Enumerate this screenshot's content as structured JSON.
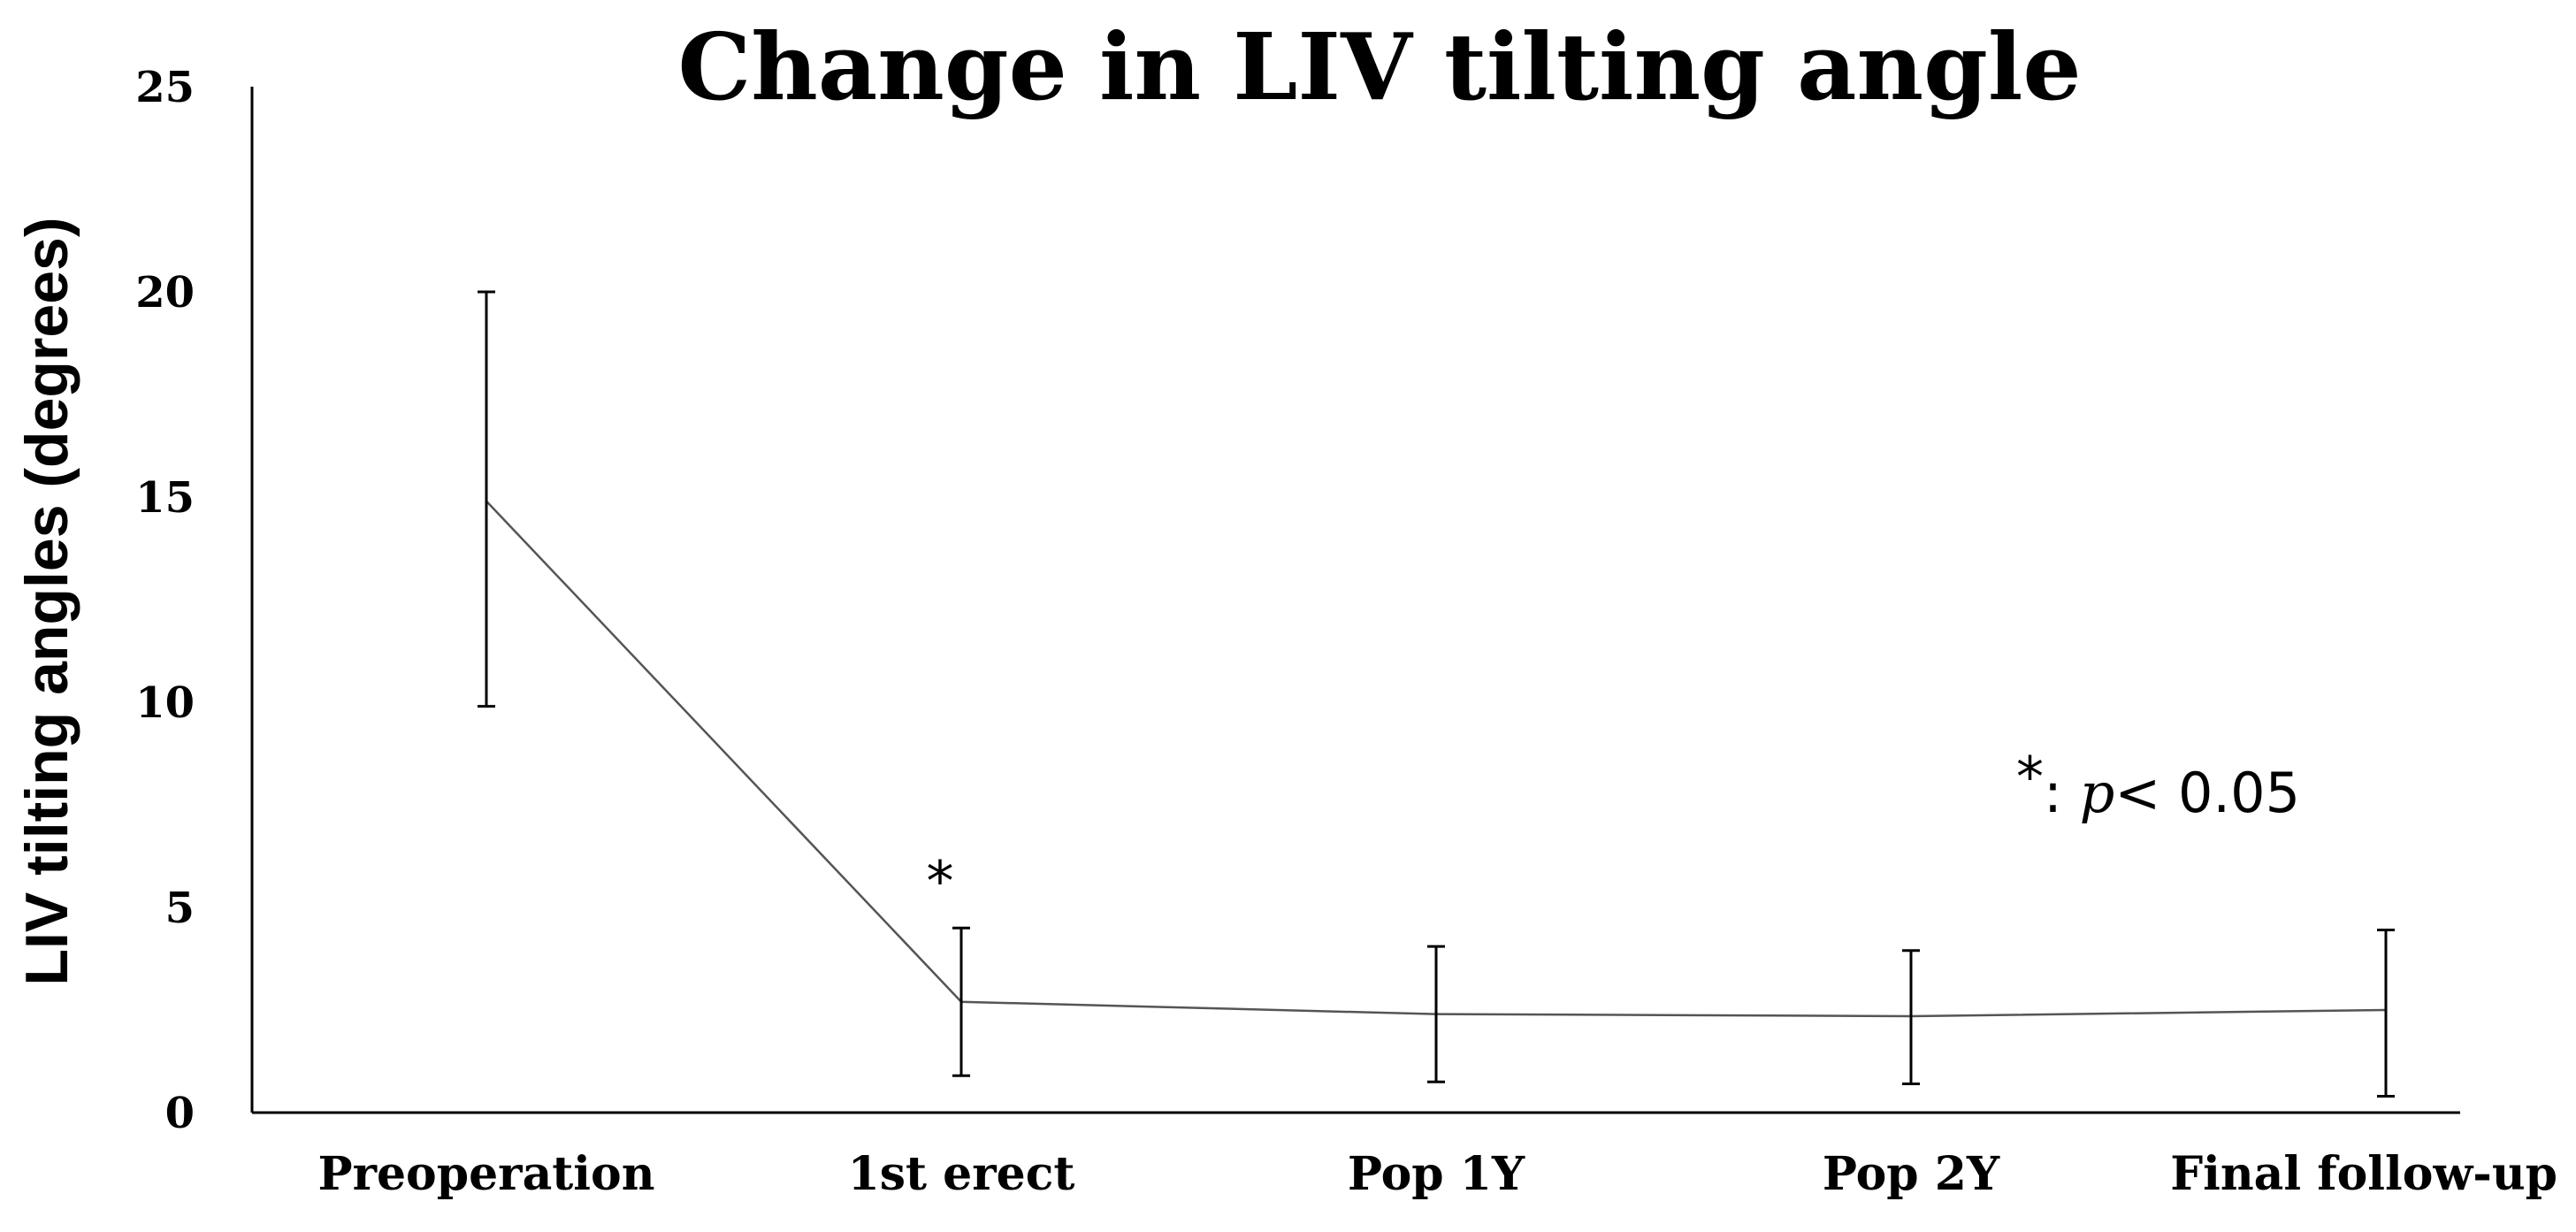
{
  "chart_data": {
    "type": "line",
    "title": "Change in LIV tilting angle",
    "xlabel": "",
    "ylabel": "LIV tilting angles (degrees)",
    "ylim": [
      0,
      25
    ],
    "yticks": [
      "0",
      "5",
      "10",
      "15",
      "20",
      "25"
    ],
    "categories": [
      "Preoperation",
      "1st erect",
      "Pop 1Y",
      "Pop 2Y",
      "Final follow-up"
    ],
    "series": [
      {
        "values": [
          14.9,
          2.7,
          2.4,
          2.35,
          2.5
        ],
        "error_low": [
          9.9,
          0.9,
          0.75,
          0.7,
          0.4
        ],
        "error_high": [
          20.0,
          4.5,
          4.05,
          3.95,
          4.45
        ]
      }
    ],
    "grid": false,
    "legend": "none",
    "annotations": {
      "significance_mark": "*",
      "significance_category": "1st erect",
      "note_star": "*",
      "note_colon": ":",
      "note_p": "p",
      "note_value": "< 0.05"
    },
    "colors": {
      "line": "#555555",
      "axis": "#000000"
    }
  }
}
